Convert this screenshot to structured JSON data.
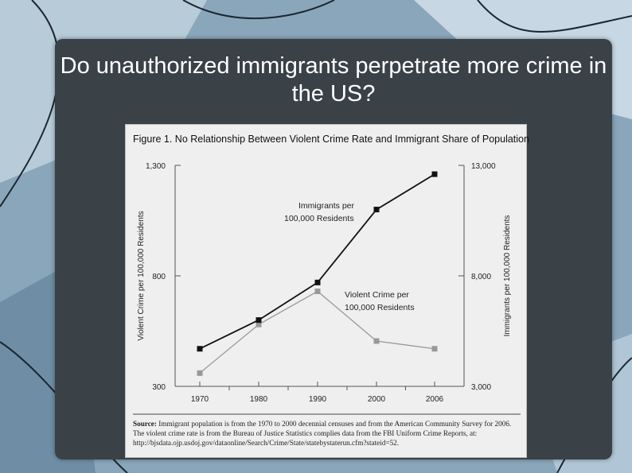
{
  "slide": {
    "title": "Do unauthorized immigrants perpetrate more crime in the US?"
  },
  "figure": {
    "title": "Figure 1. No Relationship Between Violent Crime Rate and Immigrant Share of Population",
    "source_label": "Source:",
    "source_text": "Immigrant population is from the 1970 to 2000 decennial censuses and from the American Community Survey for 2006. The violent crime rate is from the Bureau of Justice Statistics complies data from the FBI Uniform Crime Reports, at: http://bjsdata.ojp.usdoj.gov/dataonline/Search/Crime/State/statebystaterun.cfm?stateid=52."
  },
  "colors": {
    "panel": "#3a4147",
    "figure_bg": "#efefef",
    "immigrants_series": "#111111",
    "crime_series": "#999999"
  },
  "chart_data": {
    "type": "line",
    "categories": [
      "1970",
      "1980",
      "1990",
      "2000",
      "2006"
    ],
    "ylabel_left": "Violent Crime per 100,000 Residents",
    "ylabel_right": "Immigrants per 100,000 Residents",
    "ylim_left": [
      300,
      1300
    ],
    "ylim_right": [
      3000,
      13000
    ],
    "left_ticks": [
      "1,300",
      "800",
      "300"
    ],
    "right_ticks": [
      "13,000",
      "8,000",
      "3,000"
    ],
    "series": [
      {
        "name": "Immigrants per 100,000 Residents",
        "axis": "right",
        "values": [
          4700,
          6000,
          7700,
          11000,
          12600
        ]
      },
      {
        "name": "Violent Crime per 100,000 Residents",
        "axis": "left",
        "values": [
          360,
          580,
          730,
          505,
          470
        ]
      }
    ]
  }
}
